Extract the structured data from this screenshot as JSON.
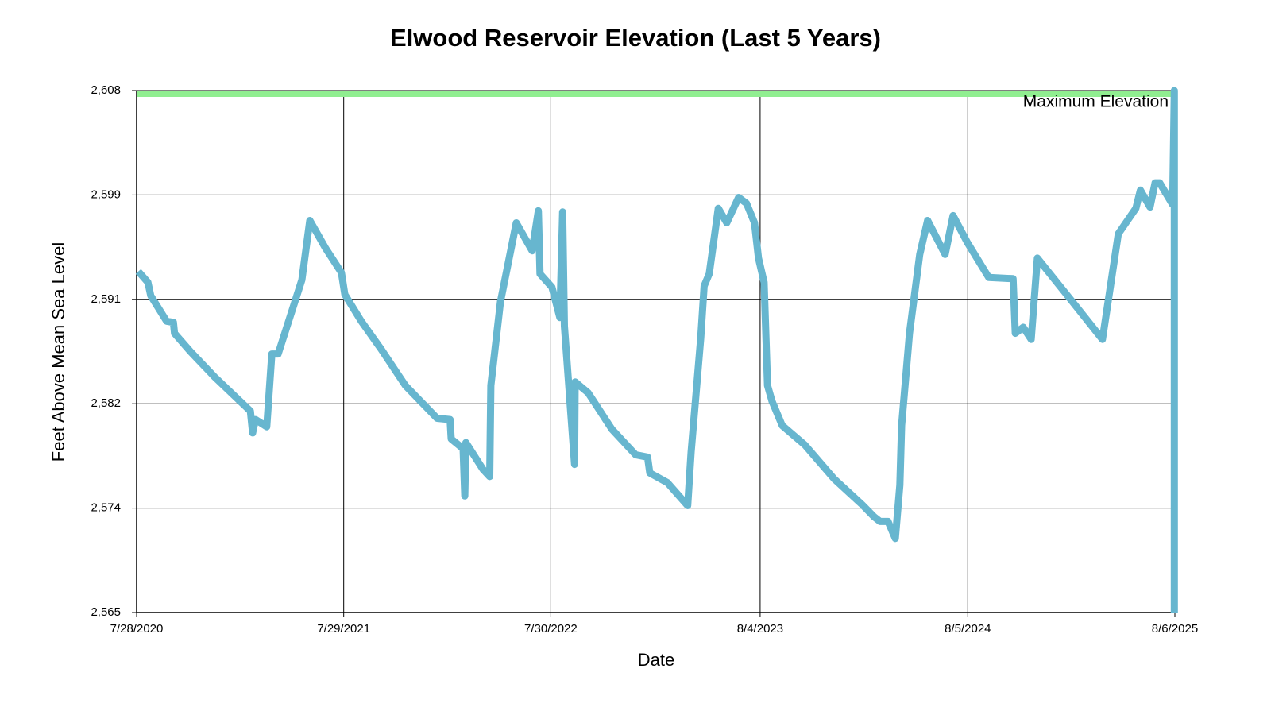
{
  "chart_data": {
    "type": "line",
    "title": "Elwood Reservoir Elevation (Last 5 Years)",
    "x_label": "Date",
    "y_label": "Feet Above Mean Sea Level",
    "color": "#67b6cf",
    "grid": true,
    "xlim": [
      "2020-07-28",
      "2025-08-06"
    ],
    "xticks": [
      {
        "value": "2020-07-28",
        "label": "7/28/2020"
      },
      {
        "value": "2021-07-29",
        "label": "7/29/2021"
      },
      {
        "value": "2022-07-30",
        "label": "7/30/2022"
      },
      {
        "value": "2023-08-04",
        "label": "8/4/2023"
      },
      {
        "value": "2024-08-05",
        "label": "8/5/2024"
      },
      {
        "value": "2025-08-06",
        "label": "8/6/2025"
      }
    ],
    "ylim": [
      2565,
      2608
    ],
    "yticks": [
      {
        "value": 2565,
        "label": "2,565"
      },
      {
        "value": 2573.6,
        "label": "2,574"
      },
      {
        "value": 2582.2,
        "label": "2,582"
      },
      {
        "value": 2590.8,
        "label": "2,591"
      },
      {
        "value": 2599.4,
        "label": "2,599"
      },
      {
        "value": 2608,
        "label": "2,608"
      }
    ],
    "reference_line": {
      "value": 2608,
      "label": "Maximum Elevation",
      "color": "#90ee90",
      "text_color": "#1e7b1e"
    },
    "x": [
      "2020-07-31",
      "2020-08-17",
      "2020-08-22",
      "2020-09-19",
      "2020-10-01",
      "2020-10-03",
      "2020-10-31",
      "2020-12-13",
      "2021-02-14",
      "2021-02-18",
      "2021-02-23",
      "2021-03-15",
      "2021-03-24",
      "2021-04-04",
      "2021-05-16",
      "2021-05-30",
      "2021-06-27",
      "2021-07-25",
      "2021-07-31",
      "2021-08-29",
      "2021-10-03",
      "2021-11-15",
      "2022-01-10",
      "2022-02-02",
      "2022-02-04",
      "2022-02-25",
      "2022-02-28",
      "2022-03-02",
      "2022-04-01",
      "2022-04-13",
      "2022-04-15",
      "2022-05-02",
      "2022-05-30",
      "2022-06-27",
      "2022-07-08",
      "2022-07-11",
      "2022-08-01",
      "2022-08-15",
      "2022-08-20",
      "2022-08-23",
      "2022-09-10",
      "2022-09-11",
      "2022-10-04",
      "2022-11-15",
      "2022-12-27",
      "2023-01-17",
      "2023-01-21",
      "2023-02-21",
      "2023-03-29",
      "2023-04-04",
      "2023-04-21",
      "2023-04-27",
      "2023-05-06",
      "2023-05-22",
      "2023-06-06",
      "2023-06-27",
      "2023-07-11",
      "2023-07-25",
      "2023-08-01",
      "2023-08-11",
      "2023-08-17",
      "2023-08-25",
      "2023-09-12",
      "2023-10-22",
      "2023-12-13",
      "2024-01-31",
      "2024-02-21",
      "2024-03-03",
      "2024-03-17",
      "2024-03-30",
      "2024-04-07",
      "2024-04-10",
      "2024-04-24",
      "2024-05-12",
      "2024-05-26",
      "2024-06-26",
      "2024-07-10",
      "2024-08-04",
      "2024-09-11",
      "2024-10-24",
      "2024-10-28",
      "2024-11-11",
      "2024-11-25",
      "2024-12-06",
      "2025-02-06",
      "2025-03-31",
      "2025-04-28",
      "2025-05-29",
      "2025-06-06",
      "2025-06-23",
      "2025-07-02",
      "2025-07-10",
      "2025-08-02",
      "2025-08-05",
      "2025-08-05"
    ],
    "values": [
      2593.1,
      2592.2,
      2591.1,
      2589.0,
      2588.9,
      2588.0,
      2586.5,
      2584.4,
      2581.6,
      2579.8,
      2580.9,
      2580.3,
      2586.3,
      2586.3,
      2592.4,
      2597.3,
      2595.0,
      2593.0,
      2591.2,
      2589.0,
      2586.7,
      2583.7,
      2581.0,
      2580.9,
      2579.3,
      2578.5,
      2574.6,
      2579.0,
      2576.8,
      2576.2,
      2583.7,
      2590.6,
      2597.1,
      2594.8,
      2598.1,
      2592.9,
      2591.8,
      2589.3,
      2598.0,
      2588.6,
      2577.2,
      2584.0,
      2583.1,
      2580.1,
      2578.0,
      2577.8,
      2576.5,
      2575.7,
      2573.8,
      2578.2,
      2587.6,
      2591.9,
      2592.9,
      2598.3,
      2597.1,
      2599.2,
      2598.7,
      2597.1,
      2594.2,
      2592.2,
      2583.7,
      2582.4,
      2580.4,
      2578.8,
      2576.0,
      2573.9,
      2572.9,
      2572.5,
      2572.5,
      2571.1,
      2575.5,
      2580.4,
      2588.0,
      2594.5,
      2597.3,
      2594.5,
      2597.7,
      2595.5,
      2592.6,
      2592.5,
      2588.0,
      2588.5,
      2587.5,
      2594.2,
      2590.6,
      2587.5,
      2596.2,
      2598.3,
      2599.8,
      2598.4,
      2600.4,
      2600.4,
      2598.6,
      2608,
      2565
    ]
  }
}
